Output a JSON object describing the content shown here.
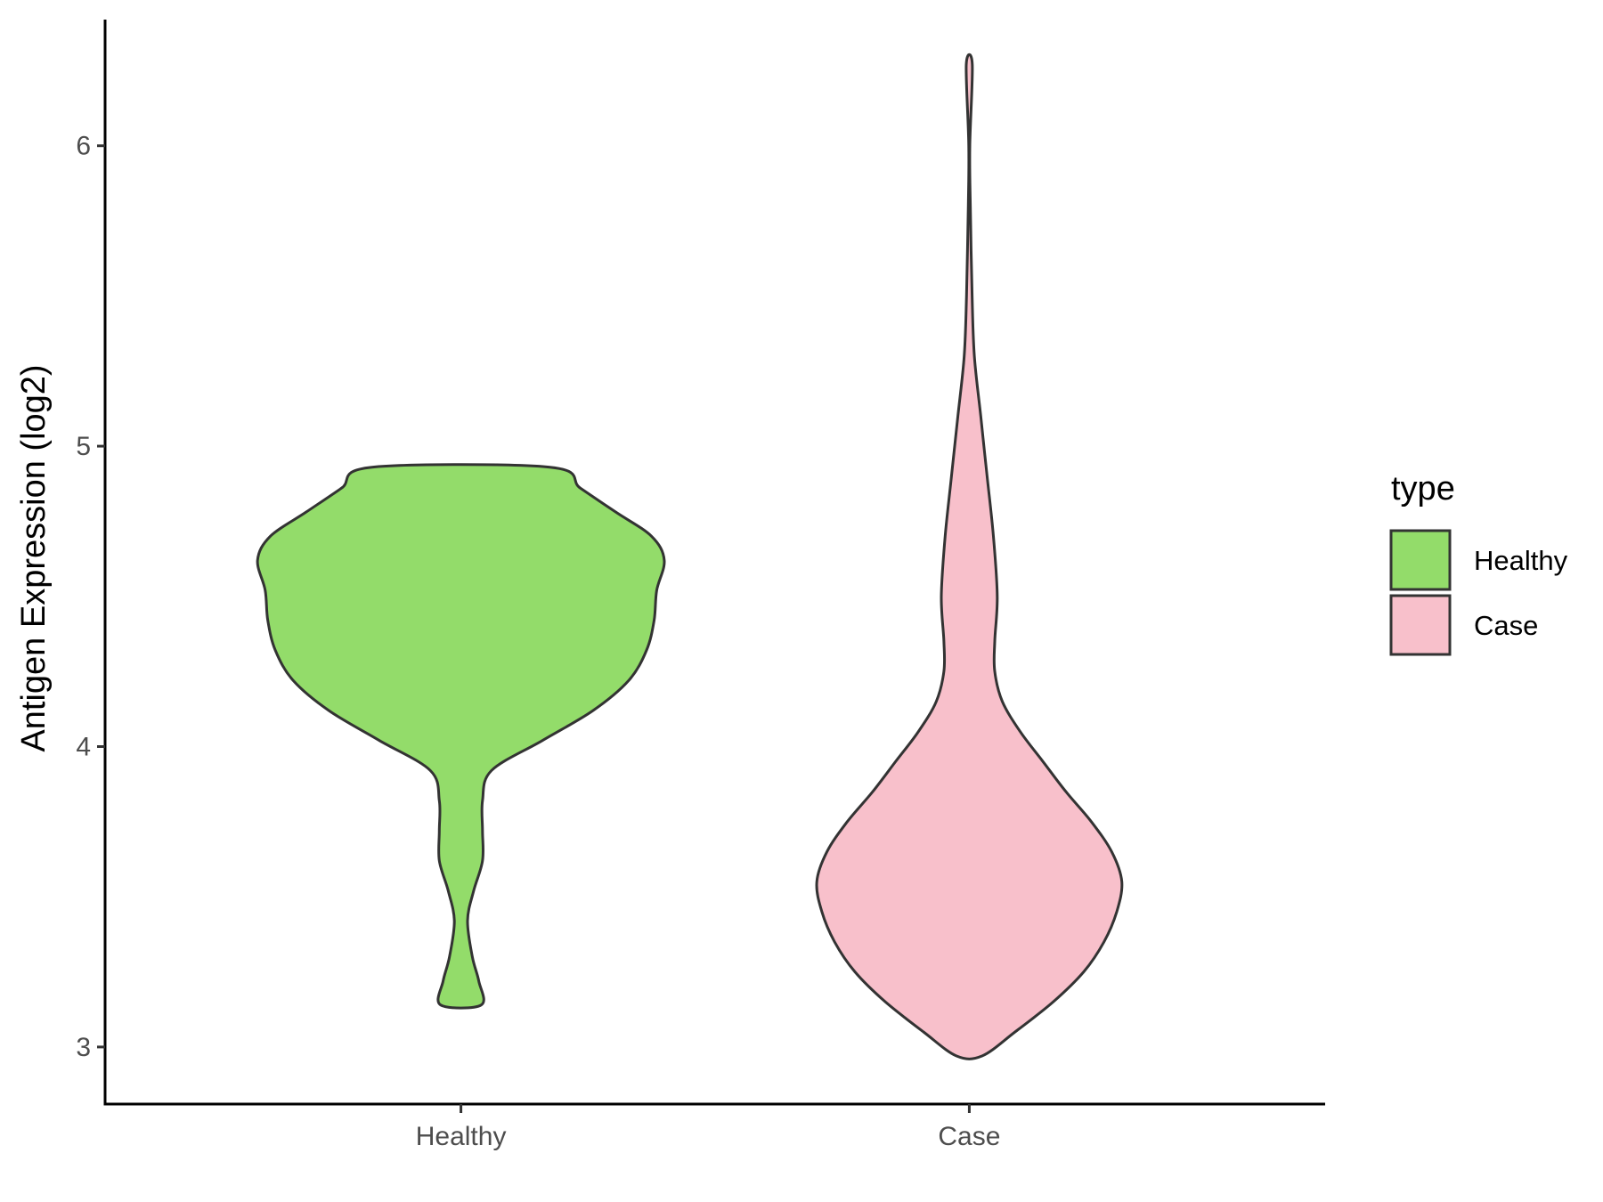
{
  "chart_data": {
    "type": "violin",
    "title": "",
    "xlabel": "",
    "ylabel": "Antigen Expression (log2)",
    "ylim": [
      2.81,
      6.42
    ],
    "yticks": [
      3,
      4,
      5,
      6
    ],
    "categories": [
      "Healthy",
      "Case"
    ],
    "grid": false,
    "legend": {
      "title": "type",
      "placement": "right",
      "entries": [
        {
          "label": "Healthy",
          "color": "#93DC6A"
        },
        {
          "label": "Case",
          "color": "#F8C0CB"
        }
      ]
    },
    "series": [
      {
        "name": "Healthy",
        "color": "#93DC6A",
        "profile": [
          {
            "y": 3.14,
            "w": 0.08
          },
          {
            "y": 3.22,
            "w": 0.07
          },
          {
            "y": 3.3,
            "w": 0.045
          },
          {
            "y": 3.42,
            "w": 0.026
          },
          {
            "y": 3.52,
            "w": 0.05
          },
          {
            "y": 3.62,
            "w": 0.085
          },
          {
            "y": 3.72,
            "w": 0.085
          },
          {
            "y": 3.82,
            "w": 0.085
          },
          {
            "y": 3.92,
            "w": 0.12
          },
          {
            "y": 4.02,
            "w": 0.32
          },
          {
            "y": 4.12,
            "w": 0.52
          },
          {
            "y": 4.22,
            "w": 0.66
          },
          {
            "y": 4.32,
            "w": 0.73
          },
          {
            "y": 4.42,
            "w": 0.76
          },
          {
            "y": 4.52,
            "w": 0.77
          },
          {
            "y": 4.62,
            "w": 0.8
          },
          {
            "y": 4.7,
            "w": 0.75
          },
          {
            "y": 4.78,
            "w": 0.61
          },
          {
            "y": 4.86,
            "w": 0.47
          },
          {
            "y": 4.93,
            "w": 0.35
          }
        ]
      },
      {
        "name": "Case",
        "color": "#F8C0CB",
        "profile": [
          {
            "y": 2.97,
            "w": 0.05
          },
          {
            "y": 3.05,
            "w": 0.18
          },
          {
            "y": 3.15,
            "w": 0.33
          },
          {
            "y": 3.25,
            "w": 0.45
          },
          {
            "y": 3.35,
            "w": 0.53
          },
          {
            "y": 3.45,
            "w": 0.58
          },
          {
            "y": 3.55,
            "w": 0.6
          },
          {
            "y": 3.65,
            "w": 0.56
          },
          {
            "y": 3.75,
            "w": 0.48
          },
          {
            "y": 3.85,
            "w": 0.38
          },
          {
            "y": 3.95,
            "w": 0.29
          },
          {
            "y": 4.05,
            "w": 0.2
          },
          {
            "y": 4.15,
            "w": 0.13
          },
          {
            "y": 4.25,
            "w": 0.1
          },
          {
            "y": 4.35,
            "w": 0.1
          },
          {
            "y": 4.5,
            "w": 0.11
          },
          {
            "y": 4.7,
            "w": 0.095
          },
          {
            "y": 4.9,
            "w": 0.07
          },
          {
            "y": 5.1,
            "w": 0.045
          },
          {
            "y": 5.3,
            "w": 0.02
          },
          {
            "y": 5.5,
            "w": 0.011
          },
          {
            "y": 5.8,
            "w": 0.004
          },
          {
            "y": 6.0,
            "w": 0.002
          },
          {
            "y": 6.27,
            "w": 0.012
          }
        ]
      }
    ]
  }
}
